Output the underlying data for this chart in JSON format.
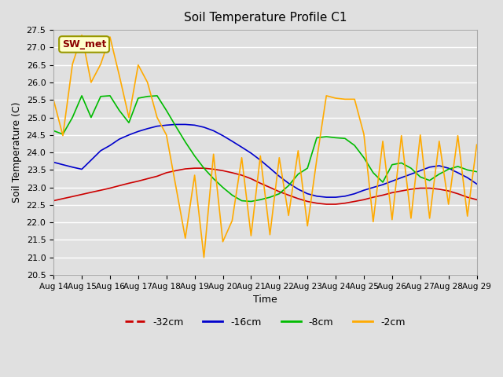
{
  "title": "Soil Temperature Profile C1",
  "xlabel": "Time",
  "ylabel": "Soil Temperature (C)",
  "ylim": [
    20.5,
    27.5
  ],
  "xlim": [
    0,
    15
  ],
  "annotation_label": "SW_met",
  "x_tick_labels": [
    "Aug 14",
    "Aug 15",
    "Aug 16",
    "Aug 17",
    "Aug 18",
    "Aug 19",
    "Aug 20",
    "Aug 21",
    "Aug 22",
    "Aug 23",
    "Aug 24",
    "Aug 25",
    "Aug 26",
    "Aug 27",
    "Aug 28",
    "Aug 29"
  ],
  "series": {
    "-32cm": {
      "color": "#cc0000",
      "data_x": [
        0,
        0.33,
        0.67,
        1,
        1.33,
        1.67,
        2,
        2.33,
        2.67,
        3,
        3.33,
        3.67,
        4,
        4.33,
        4.67,
        5,
        5.33,
        5.67,
        6,
        6.33,
        6.67,
        7,
        7.33,
        7.67,
        8,
        8.33,
        8.67,
        9,
        9.33,
        9.67,
        10,
        10.33,
        10.67,
        11,
        11.33,
        11.67,
        12,
        12.33,
        12.67,
        13,
        13.33,
        13.67,
        14,
        14.33,
        14.67,
        15
      ],
      "data_y": [
        22.62,
        22.68,
        22.74,
        22.8,
        22.86,
        22.92,
        22.98,
        23.05,
        23.12,
        23.18,
        23.25,
        23.32,
        23.42,
        23.48,
        23.53,
        23.55,
        23.55,
        23.52,
        23.48,
        23.42,
        23.35,
        23.25,
        23.12,
        23.0,
        22.88,
        22.78,
        22.68,
        22.6,
        22.55,
        22.52,
        22.52,
        22.55,
        22.6,
        22.65,
        22.72,
        22.78,
        22.85,
        22.9,
        22.95,
        22.98,
        22.98,
        22.95,
        22.9,
        22.82,
        22.72,
        22.65
      ]
    },
    "-16cm": {
      "color": "#0000cc",
      "data_x": [
        0,
        0.33,
        0.67,
        1,
        1.33,
        1.67,
        2,
        2.33,
        2.67,
        3,
        3.33,
        3.67,
        4,
        4.33,
        4.67,
        5,
        5.33,
        5.67,
        6,
        6.33,
        6.67,
        7,
        7.33,
        7.67,
        8,
        8.33,
        8.67,
        9,
        9.33,
        9.67,
        10,
        10.33,
        10.67,
        11,
        11.33,
        11.67,
        12,
        12.33,
        12.67,
        13,
        13.33,
        13.67,
        14,
        14.33,
        14.67,
        15
      ],
      "data_y": [
        23.72,
        23.65,
        23.58,
        23.52,
        23.78,
        24.05,
        24.2,
        24.38,
        24.5,
        24.6,
        24.68,
        24.75,
        24.78,
        24.8,
        24.8,
        24.78,
        24.72,
        24.62,
        24.48,
        24.32,
        24.15,
        23.98,
        23.78,
        23.55,
        23.32,
        23.12,
        22.95,
        22.82,
        22.75,
        22.72,
        22.72,
        22.75,
        22.82,
        22.92,
        23.0,
        23.08,
        23.18,
        23.28,
        23.38,
        23.48,
        23.58,
        23.62,
        23.55,
        23.42,
        23.28,
        23.1
      ]
    },
    "-8cm": {
      "color": "#00bb00",
      "data_x": [
        0,
        0.33,
        0.67,
        1,
        1.33,
        1.67,
        2,
        2.33,
        2.67,
        3,
        3.33,
        3.67,
        4,
        4.33,
        4.67,
        5,
        5.33,
        5.67,
        6,
        6.33,
        6.67,
        7,
        7.33,
        7.67,
        8,
        8.33,
        8.67,
        9,
        9.33,
        9.67,
        10,
        10.33,
        10.67,
        11,
        11.33,
        11.67,
        12,
        12.33,
        12.67,
        13,
        13.33,
        13.67,
        14,
        14.33,
        14.67,
        15
      ],
      "data_y": [
        24.62,
        24.52,
        25.0,
        25.62,
        25.0,
        25.6,
        25.62,
        25.2,
        24.85,
        25.55,
        25.6,
        25.62,
        25.2,
        24.75,
        24.3,
        23.9,
        23.55,
        23.25,
        23.0,
        22.78,
        22.62,
        22.6,
        22.65,
        22.72,
        22.82,
        23.05,
        23.38,
        23.55,
        24.42,
        24.45,
        24.42,
        24.4,
        24.2,
        23.85,
        23.42,
        23.15,
        23.65,
        23.7,
        23.55,
        23.3,
        23.2,
        23.38,
        23.52,
        23.6,
        23.5,
        23.45
      ]
    },
    "-2cm": {
      "color": "#ffaa00",
      "data_x": [
        0,
        0.33,
        0.67,
        1,
        1.33,
        1.67,
        2,
        2.33,
        2.67,
        3,
        3.33,
        3.67,
        4,
        4.33,
        4.67,
        5,
        5.33,
        5.67,
        6,
        6.33,
        6.67,
        7,
        7.33,
        7.67,
        8,
        8.33,
        8.67,
        9,
        9.33,
        9.67,
        10,
        10.33,
        10.67,
        11,
        11.33,
        11.67,
        12,
        12.33,
        12.67,
        13,
        13.33,
        13.67,
        14,
        14.33,
        14.67,
        15
      ],
      "data_y": [
        25.5,
        24.48,
        26.52,
        27.35,
        26.0,
        26.52,
        27.3,
        26.2,
        25.0,
        26.5,
        26.0,
        25.0,
        24.5,
        23.05,
        21.55,
        23.35,
        21.0,
        23.95,
        21.45,
        22.05,
        23.85,
        21.62,
        23.9,
        21.65,
        23.85,
        22.2,
        24.05,
        21.9,
        23.8,
        25.62,
        25.55,
        25.52,
        25.52,
        24.52,
        22.02,
        24.32,
        22.08,
        24.48,
        22.12,
        24.5,
        22.12,
        24.32,
        22.52,
        24.48,
        22.18,
        24.22
      ]
    }
  },
  "legend_entries": [
    "-32cm",
    "-16cm",
    "-8cm",
    "-2cm"
  ],
  "legend_colors": [
    "#cc0000",
    "#0000cc",
    "#00bb00",
    "#ffaa00"
  ],
  "background_color": "#e0e0e0",
  "plot_bg_color": "#e0e0e0",
  "grid_color": "#ffffff"
}
